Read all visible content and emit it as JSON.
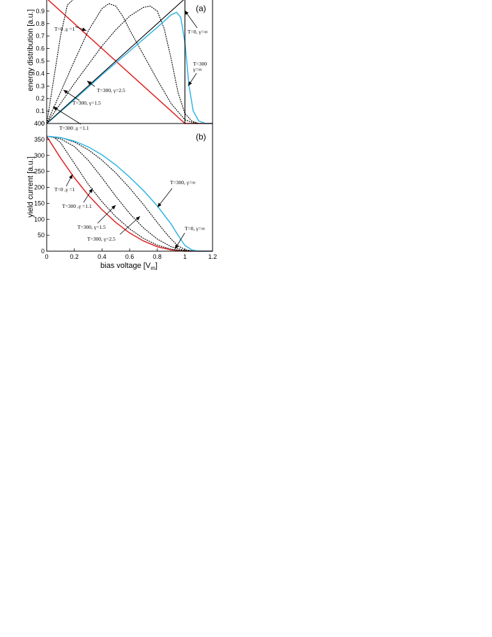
{
  "chart_data": [
    {
      "type": "line",
      "panel_label": "(a)",
      "xlabel": "",
      "ylabel": "energy distribution [a.u.]",
      "xlim": [
        0,
        1.2
      ],
      "ylim": [
        0,
        1.0
      ],
      "y_ticks": [
        "0",
        "0.1",
        "0.2",
        "0.3",
        "0.4",
        "0.5",
        "0.6",
        "0.7",
        "0.8",
        "0.9"
      ],
      "grid": false,
      "colors": {
        "T=0, γ=1": "#e02020",
        "T=300, γ=∞": "#33b5e5",
        "other": "#000000"
      },
      "series": [
        {
          "name": "T=0, γ=1",
          "x": [
            0,
            0.2,
            0.4,
            0.6,
            0.8,
            1.0,
            1.2
          ],
          "y": [
            1.0,
            0.8,
            0.6,
            0.4,
            0.2,
            0.0,
            0.0
          ]
        },
        {
          "name": "T=300, γ=1.1",
          "x": [
            0,
            0.05,
            0.1,
            0.15,
            0.2,
            0.3,
            0.4,
            0.5,
            0.6,
            0.7,
            0.8,
            0.9,
            1.0,
            1.05,
            1.1,
            1.2
          ],
          "y": [
            0.0,
            0.35,
            0.7,
            0.95,
            1.0,
            1.0,
            1.0,
            1.0,
            1.0,
            1.0,
            1.0,
            1.0,
            1.0,
            1.0,
            1.0,
            1.0
          ]
        },
        {
          "name": "T=300, γ=1.5",
          "x": [
            0,
            0.1,
            0.2,
            0.3,
            0.4,
            0.45,
            0.5,
            0.55,
            0.6,
            0.7,
            0.8,
            0.9,
            1.0,
            1.05,
            1.1,
            1.2
          ],
          "y": [
            0.0,
            0.25,
            0.5,
            0.74,
            0.92,
            0.96,
            0.94,
            0.86,
            0.75,
            0.55,
            0.35,
            0.16,
            0.03,
            0.01,
            0.0,
            0.0
          ]
        },
        {
          "name": "T=300, γ=2.5",
          "x": [
            0,
            0.1,
            0.2,
            0.3,
            0.4,
            0.5,
            0.6,
            0.7,
            0.75,
            0.8,
            0.85,
            0.9,
            0.95,
            1.0,
            1.05,
            1.1,
            1.2
          ],
          "y": [
            0.0,
            0.16,
            0.32,
            0.47,
            0.62,
            0.75,
            0.86,
            0.93,
            0.94,
            0.9,
            0.76,
            0.52,
            0.25,
            0.08,
            0.02,
            0.0,
            0.0
          ]
        },
        {
          "name": "T=300, γ=∞",
          "x": [
            0,
            0.2,
            0.4,
            0.6,
            0.8,
            0.9,
            0.94,
            0.97,
            1.0,
            1.03,
            1.06,
            1.1,
            1.15,
            1.2
          ],
          "y": [
            0.0,
            0.19,
            0.39,
            0.58,
            0.77,
            0.87,
            0.89,
            0.85,
            0.65,
            0.3,
            0.1,
            0.02,
            0.0,
            0.0
          ]
        },
        {
          "name": "T=0, γ=∞",
          "x": [
            0,
            1.0,
            1.0,
            1.2
          ],
          "y": [
            0.0,
            1.0,
            0.0,
            0.0
          ]
        }
      ],
      "annotations": [
        {
          "text": "T=0 ,γ =1"
        },
        {
          "text": "T=300 ,γ =1.1"
        },
        {
          "text": "T=300, γ=1.5"
        },
        {
          "text": "T=300, γ=2.5"
        },
        {
          "text": "T=0, γ=∞"
        },
        {
          "text": "T=300"
        },
        {
          "text": "γ=∞"
        }
      ]
    },
    {
      "type": "line",
      "panel_label": "(b)",
      "xlabel": "bias voltage [V",
      "xlabel_sub": "m",
      "xlabel_end": "]",
      "ylabel": "yield current [a.u.]",
      "xlim": [
        0,
        1.2
      ],
      "ylim": [
        0,
        400
      ],
      "x_ticks": [
        "0",
        "0.2",
        "0.4",
        "0.6",
        "0.8",
        "1",
        "1.2"
      ],
      "y_ticks": [
        "0",
        "50",
        "100",
        "150",
        "200",
        "250",
        "300",
        "350",
        "400"
      ],
      "grid": false,
      "colors": {
        "T=0, γ=1": "#e02020",
        "T=300, γ=∞": "#33b5e5",
        "other": "#000000"
      },
      "series": [
        {
          "name": "T=0, γ=1",
          "x": [
            0,
            0.1,
            0.2,
            0.3,
            0.4,
            0.5,
            0.6,
            0.7,
            0.8,
            0.9,
            1.0,
            1.2
          ],
          "y": [
            360,
            292,
            230,
            176,
            130,
            90,
            57,
            32,
            14,
            4,
            0,
            0
          ]
        },
        {
          "name": "T=300, γ=1.1",
          "x": [
            0,
            0.05,
            0.1,
            0.2,
            0.3,
            0.4,
            0.5,
            0.6,
            0.7,
            0.8,
            0.9,
            1.0,
            1.05,
            1.2
          ],
          "y": [
            360,
            358,
            340,
            275,
            210,
            155,
            108,
            70,
            40,
            19,
            6,
            1,
            0,
            0
          ]
        },
        {
          "name": "T=300, γ=1.5",
          "x": [
            0,
            0.1,
            0.2,
            0.3,
            0.4,
            0.5,
            0.6,
            0.7,
            0.8,
            0.9,
            1.0,
            1.05,
            1.2
          ],
          "y": [
            360,
            352,
            328,
            285,
            230,
            172,
            118,
            73,
            38,
            14,
            2,
            0,
            0
          ]
        },
        {
          "name": "T=300, γ=2.5",
          "x": [
            0,
            0.1,
            0.2,
            0.3,
            0.4,
            0.5,
            0.6,
            0.7,
            0.75,
            0.8,
            0.85,
            0.9,
            0.95,
            1.0,
            1.05,
            1.2
          ],
          "y": [
            360,
            356,
            342,
            318,
            285,
            245,
            198,
            146,
            118,
            90,
            63,
            38,
            17,
            5,
            1,
            0
          ]
        },
        {
          "name": "T=300, γ=∞",
          "x": [
            0,
            0.1,
            0.2,
            0.3,
            0.4,
            0.5,
            0.6,
            0.7,
            0.8,
            0.9,
            0.95,
            1.0,
            1.05,
            1.1,
            1.2
          ],
          "y": [
            360,
            356,
            345,
            327,
            302,
            270,
            232,
            190,
            142,
            85,
            50,
            18,
            4,
            0,
            0
          ]
        }
      ],
      "annotations": [
        {
          "text": "T=0 ,γ =1"
        },
        {
          "text": "T=300 ,γ =1.1"
        },
        {
          "text": "T=300, γ=1.5"
        },
        {
          "text": "T=300, γ=2.5"
        },
        {
          "text": "T=300, γ=∞"
        },
        {
          "text": "T=0, γ=∞"
        }
      ]
    }
  ]
}
